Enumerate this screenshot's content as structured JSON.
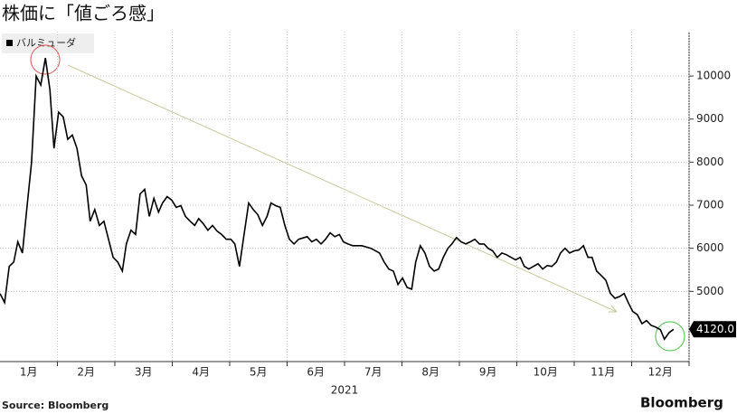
{
  "chart_data": {
    "type": "line",
    "title": "株価に「値ごろ感」",
    "xlabel": "2021",
    "source": "Source:  Bloomberg",
    "brand": "Bloomberg",
    "xlim": [
      1,
      13
    ],
    "ylim": [
      3370,
      11030
    ],
    "xticks": [
      {
        "value": 1.5,
        "label": "1月"
      },
      {
        "value": 2.5,
        "label": "2月"
      },
      {
        "value": 3.5,
        "label": "3月"
      },
      {
        "value": 4.5,
        "label": "4月"
      },
      {
        "value": 5.5,
        "label": "5月"
      },
      {
        "value": 6.5,
        "label": "6月"
      },
      {
        "value": 7.5,
        "label": "7月"
      },
      {
        "value": 8.5,
        "label": "8月"
      },
      {
        "value": 9.5,
        "label": "9月"
      },
      {
        "value": 10.5,
        "label": "10月"
      },
      {
        "value": 11.5,
        "label": "11月"
      },
      {
        "value": 12.5,
        "label": "12月"
      }
    ],
    "yticks": [
      5000,
      6000,
      7000,
      8000,
      9000,
      10000
    ],
    "grid": true,
    "series": [
      {
        "name": "バルミューダ",
        "color": "#000000",
        "last_value_label": "4120.0",
        "x": [
          1.0,
          1.08,
          1.16,
          1.24,
          1.31,
          1.39,
          1.47,
          1.55,
          1.63,
          1.71,
          1.79,
          1.87,
          1.94,
          2.02,
          2.1,
          2.18,
          2.26,
          2.34,
          2.42,
          2.5,
          2.57,
          2.65,
          2.73,
          2.81,
          2.89,
          2.97,
          3.05,
          3.13,
          3.2,
          3.28,
          3.36,
          3.44,
          3.52,
          3.6,
          3.68,
          3.76,
          3.83,
          3.91,
          3.99,
          4.07,
          4.15,
          4.23,
          4.31,
          4.39,
          4.46,
          4.54,
          4.62,
          4.7,
          4.78,
          4.86,
          4.94,
          5.02,
          5.09,
          5.17,
          5.25,
          5.33,
          5.41,
          5.49,
          5.57,
          5.65,
          5.72,
          5.8,
          5.88,
          5.96,
          6.04,
          6.12,
          6.2,
          6.35,
          6.43,
          6.51,
          6.59,
          6.67,
          6.75,
          6.83,
          6.91,
          6.98,
          7.06,
          7.14,
          7.3,
          7.46,
          7.61,
          7.69,
          7.77,
          7.85,
          7.93,
          8.01,
          8.09,
          8.17,
          8.24,
          8.32,
          8.4,
          8.48,
          8.56,
          8.64,
          8.72,
          8.8,
          8.87,
          8.95,
          9.03,
          9.11,
          9.19,
          9.27,
          9.35,
          9.43,
          9.5,
          9.58,
          9.66,
          9.74,
          9.82,
          9.9,
          9.98,
          10.06,
          10.13,
          10.21,
          10.29,
          10.37,
          10.45,
          10.53,
          10.61,
          10.69,
          10.76,
          10.84,
          10.92,
          11.0,
          11.08,
          11.16,
          11.24,
          11.31,
          11.39,
          11.47,
          11.55,
          11.63,
          11.71,
          11.79,
          11.87,
          11.94,
          12.02,
          12.1,
          12.18,
          12.26,
          12.34,
          12.42,
          12.5,
          12.57,
          12.65,
          12.73
        ],
        "values": [
          4950,
          4740,
          5580,
          5680,
          6150,
          5890,
          6950,
          8000,
          10000,
          9790,
          10420,
          9680,
          8320,
          9160,
          9050,
          8530,
          8630,
          8320,
          7680,
          7470,
          6630,
          6900,
          6530,
          6630,
          6210,
          5790,
          5680,
          5470,
          6100,
          6420,
          6320,
          7260,
          7370,
          6740,
          7160,
          6840,
          7050,
          7200,
          7120,
          6950,
          6990,
          6740,
          6630,
          6530,
          6690,
          6570,
          6420,
          6530,
          6400,
          6320,
          6210,
          6210,
          6100,
          5580,
          6320,
          7050,
          6900,
          6780,
          6530,
          6740,
          7050,
          6990,
          6950,
          6530,
          6210,
          6100,
          6210,
          6270,
          6150,
          6210,
          6100,
          6210,
          6360,
          6270,
          6320,
          6150,
          6100,
          6060,
          6060,
          6000,
          5890,
          5680,
          5520,
          5470,
          5160,
          5310,
          5090,
          5050,
          5680,
          6060,
          5890,
          5580,
          5470,
          5520,
          5790,
          6000,
          6100,
          6250,
          6150,
          6100,
          6150,
          6210,
          6100,
          6100,
          6000,
          5940,
          5790,
          5890,
          5850,
          5790,
          5730,
          5790,
          5580,
          5520,
          5580,
          5640,
          5520,
          5600,
          5580,
          5680,
          5890,
          6000,
          5890,
          5940,
          5960,
          6060,
          5790,
          5790,
          5470,
          5370,
          5260,
          4950,
          4840,
          4880,
          4950,
          4740,
          4530,
          4460,
          4250,
          4320,
          4210,
          4170,
          4110,
          3890,
          4040,
          4120
        ]
      }
    ]
  }
}
